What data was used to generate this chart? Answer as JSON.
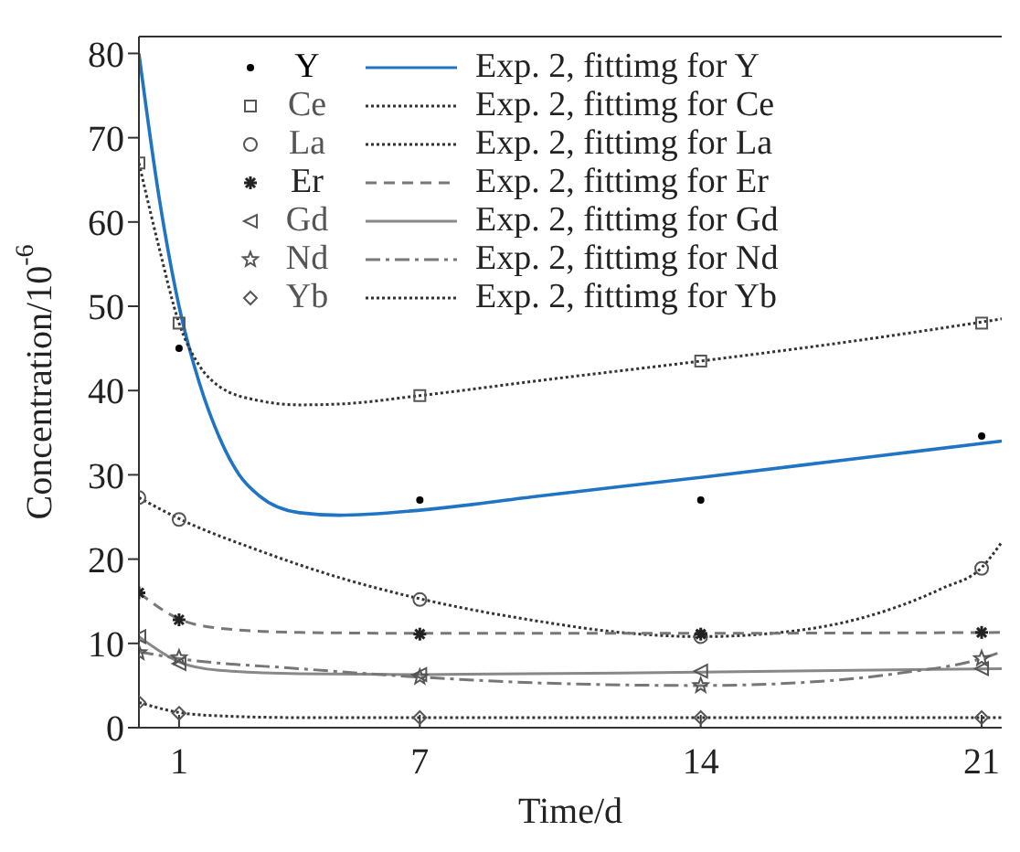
{
  "chart_data": {
    "type": "scatter",
    "xlabel": "Time/d",
    "ylabel": "Concentration/10$^{-6}$",
    "xlim": [
      0,
      21.5
    ],
    "xticks": [
      1,
      7,
      14,
      21
    ],
    "ylim": [
      0,
      82
    ],
    "yticks": [
      0,
      10,
      20,
      30,
      40,
      50,
      60,
      70,
      80
    ],
    "grid": false,
    "legend": "top",
    "series": [
      {
        "name": "Y",
        "marker": "circle",
        "color": "#000000",
        "x": [
          1,
          7,
          14,
          21
        ],
        "values": [
          45,
          27,
          27,
          34.6
        ]
      },
      {
        "name": "Ce",
        "marker": "square",
        "color": "#555555",
        "x": [
          0,
          1,
          7,
          14,
          21
        ],
        "values": [
          67,
          48,
          39.4,
          43.5,
          48
        ]
      },
      {
        "name": "La",
        "marker": "circle",
        "color": "#555555",
        "x": [
          0,
          1,
          7,
          14,
          21
        ],
        "values": [
          27.3,
          24.7,
          15.2,
          10.8,
          18.9
        ]
      },
      {
        "name": "Er",
        "marker": "cross",
        "color": "#222222",
        "x": [
          0,
          1,
          7,
          14,
          21
        ],
        "values": [
          16,
          12.8,
          11.1,
          11.1,
          11.3
        ]
      },
      {
        "name": "Gd",
        "marker": "triangle",
        "color": "#555555",
        "x": [
          0,
          1,
          7,
          14,
          21
        ],
        "values": [
          10.8,
          7.6,
          6.3,
          6.7,
          7
        ]
      },
      {
        "name": "Nd",
        "marker": "star",
        "color": "#555555",
        "x": [
          0,
          1,
          7,
          14,
          21
        ],
        "values": [
          8.9,
          8.3,
          6,
          5,
          8.2
        ]
      },
      {
        "name": "Yb",
        "marker": "diamond",
        "color": "#555555",
        "x": [
          0,
          1,
          7,
          14,
          21
        ],
        "values": [
          3,
          1.7,
          1.2,
          1.2,
          1.2
        ]
      },
      {
        "name": "Exp. 2, fittimg for Y",
        "type": "line",
        "line_style": "solid",
        "color": "#1f74c4",
        "x": [
          0,
          0.5,
          1,
          1.5,
          2,
          2.5,
          3,
          4,
          5,
          7,
          10,
          14,
          18,
          21.5
        ],
        "values": [
          80,
          63,
          50,
          41,
          34.5,
          30,
          27.5,
          25.5,
          25.2,
          25.8,
          27.5,
          29.7,
          32,
          34
        ]
      },
      {
        "name": "Exp. 2, fittimg for Ce",
        "type": "line",
        "line_style": "dotted",
        "color": "#333333",
        "x": [
          0,
          0.5,
          1,
          1.5,
          2,
          3,
          4,
          5,
          7,
          10,
          14,
          18,
          21.5
        ],
        "values": [
          67,
          57,
          48,
          43,
          40.5,
          38.8,
          38.3,
          38.4,
          39.4,
          41.2,
          43.5,
          46,
          48.5
        ]
      },
      {
        "name": "Exp. 2, fittimg for La",
        "type": "line",
        "line_style": "dotted",
        "color": "#333333",
        "x": [
          0,
          1,
          3,
          5,
          7,
          10,
          12,
          14,
          16,
          18,
          20,
          21,
          21.5
        ],
        "values": [
          27.3,
          24.8,
          21,
          17.8,
          15.3,
          12.6,
          11.3,
          10.8,
          11.3,
          13,
          16.5,
          19,
          22
        ]
      },
      {
        "name": "Exp. 2, fittimg for Er",
        "type": "line",
        "line_style": "dashed",
        "color": "#777777",
        "x": [
          0,
          1,
          2,
          4,
          7,
          14,
          21.5
        ],
        "values": [
          16,
          12.9,
          11.8,
          11.3,
          11.2,
          11.2,
          11.3
        ]
      },
      {
        "name": "Exp. 2, fittimg for Gd",
        "type": "line",
        "line_style": "solid",
        "color": "#888888",
        "x": [
          0,
          1,
          2,
          4,
          7,
          14,
          21.5
        ],
        "values": [
          10.8,
          7.8,
          6.8,
          6.4,
          6.3,
          6.6,
          7
        ]
      },
      {
        "name": "Exp. 2, fittimg for Nd",
        "type": "line",
        "line_style": "dashdot",
        "color": "#777777",
        "x": [
          0,
          1,
          4,
          7,
          10,
          14,
          17,
          19,
          21,
          21.5
        ],
        "values": [
          9,
          8.2,
          7,
          6,
          5.3,
          5,
          5.5,
          6.5,
          8.2,
          9
        ]
      },
      {
        "name": "Exp. 2, fittimg for Yb",
        "type": "line",
        "line_style": "dotted",
        "color": "#333333",
        "x": [
          0,
          1,
          2,
          4,
          21.5
        ],
        "values": [
          3,
          1.8,
          1.4,
          1.2,
          1.2
        ]
      }
    ]
  }
}
